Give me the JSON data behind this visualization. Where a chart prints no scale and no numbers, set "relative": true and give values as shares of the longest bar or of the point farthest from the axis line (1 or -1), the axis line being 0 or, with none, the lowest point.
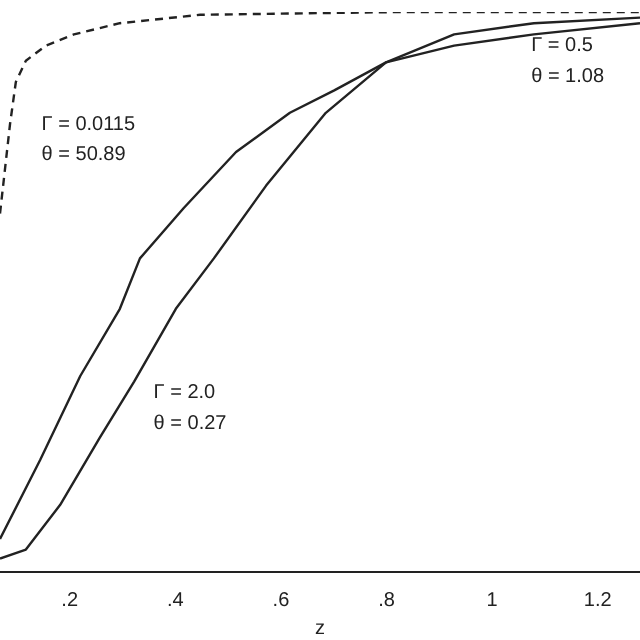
{
  "chart_data": {
    "type": "line",
    "relative": true,
    "xlabel": "z",
    "xlim": [
      0.068,
      1.28
    ],
    "xticks": [
      {
        "value": 0.2,
        "label": ".2"
      },
      {
        "value": 0.4,
        "label": ".4"
      },
      {
        "value": 0.6,
        "label": ".6"
      },
      {
        "value": 0.8,
        "label": ".8"
      },
      1,
      {
        "value": 1.2,
        "label": "1.2"
      }
    ],
    "grid": false,
    "legend": false,
    "marker": "none",
    "annotations": [
      "Γ = 0.0115",
      "θ = 50.89",
      "Γ = 0.5",
      "θ = 1.08",
      "Γ = 2.0",
      "θ = 0.27"
    ],
    "series": [
      {
        "color": "#222222",
        "line_style": "dashed",
        "x": [
          0.068,
          0.087,
          0.098,
          0.117,
          0.155,
          0.208,
          0.295,
          0.447,
          0.826,
          1.28
        ],
        "values": [
          0.64,
          0.8,
          0.875,
          0.913,
          0.94,
          0.96,
          0.98,
          0.995,
          1,
          1
        ]
      },
      {
        "color": "#222222",
        "line_style": "solid",
        "x": [
          0.068,
          0.144,
          0.22,
          0.295,
          0.333,
          0.416,
          0.515,
          0.617,
          0.701,
          0.799,
          0.928,
          1.079,
          1.28
        ],
        "values": [
          0.059,
          0.2,
          0.35,
          0.47,
          0.56,
          0.65,
          0.75,
          0.82,
          0.86,
          0.91,
          0.94,
          0.96,
          0.98
        ]
      },
      {
        "color": "#222222",
        "line_style": "solid",
        "x": [
          0.068,
          0.117,
          0.182,
          0.257,
          0.322,
          0.401,
          0.473,
          0.572,
          0.685,
          0.799,
          0.928,
          1.079,
          1.28
        ],
        "values": [
          0.024,
          0.04,
          0.12,
          0.24,
          0.34,
          0.47,
          0.56,
          0.69,
          0.82,
          0.91,
          0.96,
          0.98,
          0.99
        ]
      }
    ]
  }
}
